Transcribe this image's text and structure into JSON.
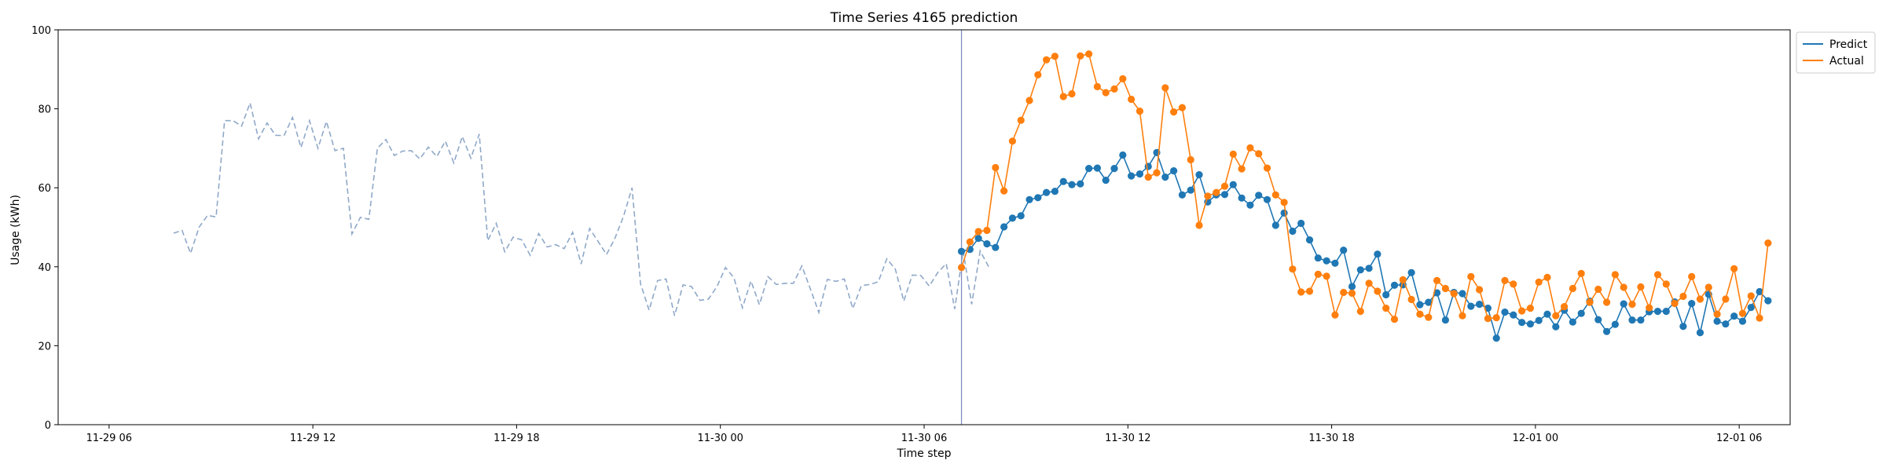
{
  "chart_data": {
    "type": "line",
    "title": "Time Series 4165 prediction",
    "xlabel": "Time step",
    "ylabel": "Usage (kWh)",
    "ylim": [
      0,
      100
    ],
    "xlim_hours": [
      -1.5,
      49.5
    ],
    "x_unit": "hours from 11-29 06:00",
    "x_ticks": [
      {
        "label": "11-29 06",
        "hours": 0
      },
      {
        "label": "11-29 12",
        "hours": 6
      },
      {
        "label": "11-29 18",
        "hours": 12
      },
      {
        "label": "11-30 00",
        "hours": 18
      },
      {
        "label": "11-30 06",
        "hours": 24
      },
      {
        "label": "11-30 12",
        "hours": 30
      },
      {
        "label": "11-30 18",
        "hours": 36
      },
      {
        "label": "12-01 00",
        "hours": 42
      },
      {
        "label": "12-01 06",
        "hours": 48
      }
    ],
    "y_ticks": [
      0,
      20,
      40,
      60,
      80,
      100
    ],
    "step_hours": 0.25,
    "forecast_start_hours": 25.1,
    "legend_position": "upper-right-outside",
    "grid": false,
    "series": [
      {
        "name": "",
        "color": "#8FA8C8",
        "style": "dashed",
        "start_hours": 1.9,
        "values": [
          48.5,
          49.2,
          43.4,
          50.0,
          53.0,
          52.6,
          77.0,
          77.0,
          75.6,
          81.5,
          72.4,
          76.4,
          73.3,
          73.2,
          77.8,
          70.2,
          77.0,
          70.0,
          76.8,
          69.4,
          70.0,
          48.3,
          52.5,
          52.0,
          70.0,
          72.2,
          68.2,
          69.3,
          69.4,
          67.3,
          70.3,
          67.9,
          71.8,
          66.3,
          73.0,
          67.5,
          73.6,
          46.6,
          51.0,
          43.8,
          47.5,
          46.8,
          42.9,
          48.4,
          45.0,
          45.6,
          44.6,
          48.7,
          40.7,
          49.7,
          46.4,
          43.1,
          47.3,
          52.8,
          60.0,
          35.7,
          29.0,
          36.5,
          36.9,
          27.6,
          35.4,
          35.0,
          31.5,
          31.8,
          35.0,
          39.8,
          37.2,
          29.6,
          36.4,
          30.4,
          37.5,
          35.5,
          35.8,
          35.8,
          40.2,
          34.4,
          28.4,
          36.8,
          36.3,
          36.9,
          29.4,
          35.2,
          35.5,
          36.2,
          42.0,
          39.4,
          31.3,
          37.9,
          37.8,
          35.1,
          38.5,
          40.8,
          29.3,
          44.0,
          30.5,
          44.0,
          40.0
        ]
      },
      {
        "name": "Predict",
        "color": "#1F77B4",
        "style": "solid-marker",
        "start_hours": 25.1,
        "values": [
          43.9,
          44.4,
          47.2,
          45.8,
          44.9,
          50.1,
          52.3,
          52.9,
          57.0,
          57.5,
          58.8,
          59.1,
          61.6,
          60.8,
          61.0,
          64.9,
          65.0,
          61.9,
          64.9,
          68.3,
          63.0,
          63.5,
          65.4,
          68.9,
          62.7,
          64.3,
          58.2,
          59.4,
          63.3,
          56.4,
          58.2,
          58.3,
          60.8,
          57.4,
          55.6,
          58.1,
          57.0,
          50.5,
          53.6,
          49.0,
          51.0,
          46.8,
          42.2,
          41.5,
          40.9,
          44.2,
          35.0,
          39.2,
          39.6,
          43.2,
          32.9,
          35.3,
          35.4,
          38.5,
          30.4,
          31.0,
          33.4,
          26.5,
          33.5,
          33.2,
          30.0,
          30.5,
          29.5,
          21.9,
          28.5,
          27.8,
          25.9,
          25.5,
          26.4,
          28.0,
          24.8,
          29.0,
          26.0,
          28.2,
          31.3,
          26.6,
          23.6,
          25.4,
          30.6,
          26.5,
          26.5,
          28.6,
          28.7,
          28.7,
          31.1,
          24.9,
          30.7,
          23.3,
          33.0,
          26.2,
          25.5,
          27.5,
          26.2,
          29.7,
          33.7,
          31.4
        ]
      },
      {
        "name": "Actual",
        "color": "#FF7F0E",
        "style": "solid-marker",
        "start_hours": 25.1,
        "values": [
          39.8,
          46.3,
          48.9,
          49.2,
          65.1,
          59.2,
          71.8,
          77.1,
          82.1,
          88.6,
          92.4,
          93.3,
          83.1,
          83.8,
          93.4,
          93.9,
          85.6,
          84.1,
          85.0,
          87.6,
          82.4,
          79.4,
          62.7,
          63.8,
          85.3,
          79.2,
          80.3,
          67.1,
          50.5,
          57.9,
          58.8,
          60.4,
          68.5,
          64.8,
          70.1,
          68.6,
          65.0,
          58.2,
          56.3,
          39.4,
          33.6,
          33.8,
          38.1,
          37.6,
          27.8,
          33.5,
          33.3,
          28.7,
          35.8,
          33.8,
          29.5,
          26.7,
          36.7,
          31.7,
          28.0,
          27.2,
          36.5,
          34.5,
          33.2,
          27.6,
          37.5,
          34.2,
          26.9,
          27.1,
          36.5,
          35.6,
          28.8,
          29.5,
          36.1,
          37.3,
          27.6,
          29.9,
          34.5,
          38.3,
          31.0,
          34.3,
          31.0,
          38.0,
          34.8,
          30.5,
          34.9,
          29.6,
          38.0,
          35.6,
          30.7,
          32.5,
          37.5,
          31.8,
          34.8,
          28.0,
          31.8,
          39.5,
          28.2,
          32.6,
          27.0,
          46.0
        ]
      }
    ]
  }
}
